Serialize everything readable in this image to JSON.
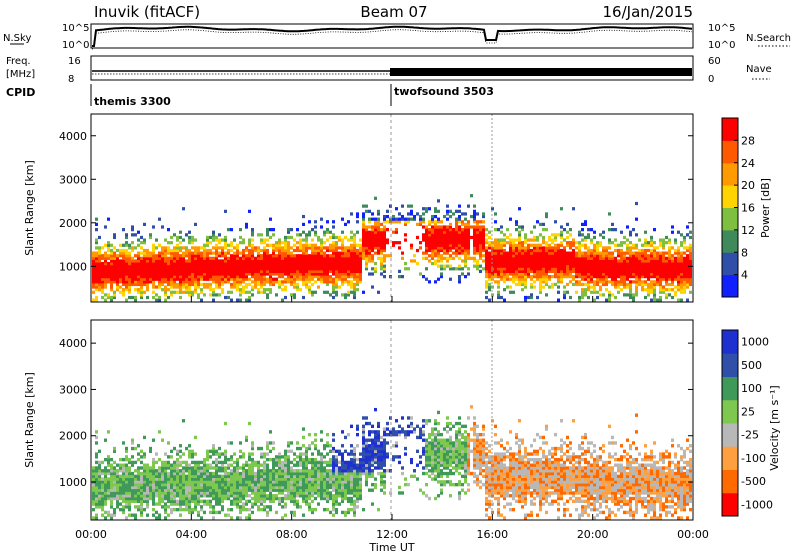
{
  "header": {
    "station": "Inuvik (fitACF)",
    "beam": "Beam 07",
    "date": "16/Jan/2015"
  },
  "noise_panel": {
    "left_label": "N.Sky",
    "right_label": "N.Search",
    "left_ticks": [
      "10^5",
      "10^0"
    ],
    "right_ticks": [
      "10^5",
      "10^0"
    ]
  },
  "freq_panel": {
    "left_label_1": "Freq.",
    "left_label_2": "[MHz]",
    "right_label": "Nave",
    "left_ticks": [
      "16",
      "8"
    ],
    "right_ticks": [
      "60",
      "0"
    ]
  },
  "cpid_panel": {
    "label": "CPID",
    "modes": [
      "themis 3300",
      "twofsound 3503"
    ]
  },
  "colors": {
    "power_scale": [
      "#1020ff",
      "#2f4fa8",
      "#3f8a5a",
      "#7fbf3f",
      "#ffd400",
      "#ff9a00",
      "#ff5a00",
      "#ff0000"
    ],
    "velocity_scale": [
      "#ff0000",
      "#ff6a00",
      "#ffa040",
      "#b8b8b8",
      "#7fc84f",
      "#3f9a5a",
      "#2f4fa8",
      "#1f30d0"
    ]
  },
  "chart_data": [
    {
      "type": "heatmap",
      "title": "",
      "xlabel": "",
      "ylabel": "Slant Range [km]",
      "colorbar_label": "Power [dB]",
      "colorbar_ticks": [
        "28",
        "24",
        "20",
        "16",
        "12",
        "8",
        "4"
      ],
      "ylim": [
        180,
        4500
      ],
      "yticks": [
        "1000",
        "2000",
        "3000",
        "4000"
      ]
    },
    {
      "type": "heatmap",
      "title": "",
      "xlabel": "Time UT",
      "ylabel": "Slant Range [km]",
      "colorbar_label": "Velocity [m s⁻¹]",
      "colorbar_ticks": [
        "1000",
        "500",
        "100",
        "25",
        "-25",
        "-100",
        "-500",
        "-1000"
      ],
      "ylim": [
        180,
        4500
      ],
      "yticks": [
        "1000",
        "2000",
        "3000",
        "4000"
      ],
      "xticks": [
        "00:00",
        "04:00",
        "08:00",
        "12:00",
        "16:00",
        "20:00",
        "00:00"
      ]
    }
  ]
}
